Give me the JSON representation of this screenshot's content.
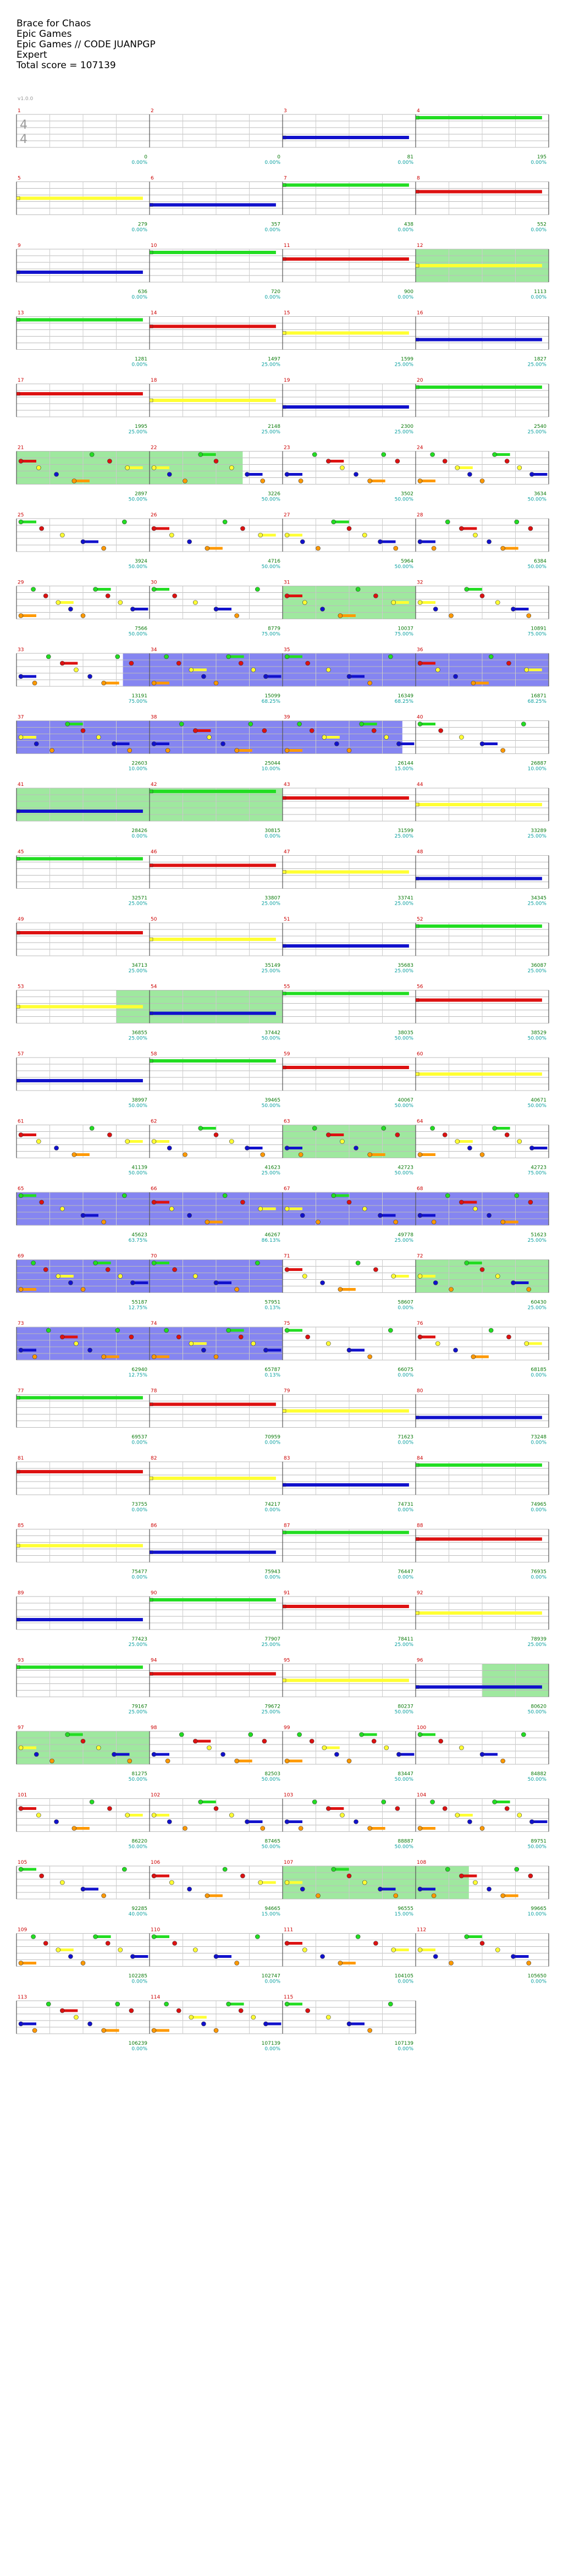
{
  "song": {
    "title": "Brace for Chaos",
    "artist": "Epic Games",
    "charter": "Epic Games // CODE JUANPGP",
    "difficulty": "Expert",
    "total_score_label": "Total score = 107139",
    "version": "v1.0.0"
  },
  "time_signature": "4/4",
  "colors": {
    "green": "#22dd22",
    "red": "#dd1111",
    "yellow": "#ffff33",
    "blue": "#1111cc",
    "orange": "#ff9900",
    "sp_fill": "#7fe07f",
    "solo_fill": "#6666ee",
    "measure_label": "#cc0000",
    "score_text": "#0a7a0a",
    "pct_text": "#0aa0a0"
  },
  "rows": [
    {
      "m": [
        1,
        2,
        3,
        4
      ],
      "stats": [
        [
          "",
          "0",
          "0.00%"
        ],
        [
          "",
          "0",
          "0.00%"
        ],
        [
          "81",
          "81",
          "0.00%"
        ],
        [
          "114",
          "195",
          "0.00%"
        ]
      ]
    },
    {
      "m": [
        5,
        6,
        7,
        8
      ],
      "stats": [
        [
          "84",
          "279",
          "0.00%"
        ],
        [
          "78",
          "357",
          "0.00%"
        ],
        [
          "81",
          "438",
          "0.00%"
        ],
        [
          "114",
          "552",
          "0.00%"
        ]
      ]
    },
    {
      "m": [
        9,
        10,
        11,
        12
      ],
      "stats": [
        [
          "84",
          "636",
          "0.00%"
        ],
        [
          "84",
          "720",
          "0.00%"
        ],
        [
          "180",
          "900",
          "0.00%"
        ],
        [
          "213",
          "1113",
          "0.00%"
        ]
      ]
    },
    {
      "m": [
        13,
        14,
        15,
        16
      ],
      "stats": [
        [
          "168",
          "1281",
          "0.00%"
        ],
        [
          "216",
          "1497",
          "25.00%"
        ],
        [
          "102",
          "1599",
          "25.00%"
        ],
        [
          "228",
          "1827",
          "25.00%"
        ]
      ]
    },
    {
      "m": [
        17,
        18,
        19,
        20
      ],
      "stats": [
        [
          "168",
          "1995",
          "25.00%"
        ],
        [
          "153",
          "2148",
          "25.00%"
        ],
        [
          "152",
          "2300",
          "25.00%"
        ],
        [
          "240",
          "2540",
          "25.00%"
        ]
      ]
    },
    {
      "m": [
        21,
        22,
        23,
        24
      ],
      "stats": [
        [
          "[",
          " ",
          ""
        ],
        [
          "357",
          "2897",
          "50.00%"
        ],
        [
          "329",
          "3226",
          "50.00%"
        ],
        [
          "276",
          "3502",
          "50.00%"
        ]
      ]
    },
    {
      "m": [
        25,
        26,
        27,
        28
      ],
      "stats": [
        [
          "",
          "",
          "0.00%"
        ],
        [
          "",
          "",
          " "
        ],
        [
          "",
          "",
          ""
        ],
        [
          "",
          "",
          ""
        ]
      ]
    },
    {
      "m": [
        29,
        30,
        31,
        32
      ],
      "stats": [
        [
          "",
          "",
          ""
        ],
        [
          "",
          "",
          ""
        ],
        [
          "",
          "",
          ""
        ],
        [
          "",
          "",
          ""
        ]
      ]
    },
    {
      "m": [
        33,
        34,
        35,
        36
      ],
      "stats": [
        [
          "",
          "",
          ""
        ],
        [
          "",
          "",
          ""
        ],
        [
          "",
          "",
          ""
        ],
        [
          "",
          "",
          ""
        ]
      ]
    },
    {
      "m": [
        37,
        38,
        39,
        40
      ],
      "stats": [
        [
          "",
          "",
          ""
        ],
        [
          "",
          "",
          ""
        ],
        [
          "",
          "",
          ""
        ],
        [
          "",
          "",
          ""
        ]
      ]
    }
  ],
  "scores": [
    [
      "0",
      "0.00%"
    ],
    [
      "0",
      "0.00%"
    ],
    [
      "81",
      "0.00%"
    ],
    [
      "195",
      "0.00%"
    ],
    [
      "279",
      "0.00%"
    ],
    [
      "357",
      "0.00%"
    ],
    [
      "438",
      "0.00%"
    ],
    [
      "552",
      "0.00%"
    ],
    [
      "636",
      "0.00%"
    ],
    [
      "720",
      "0.00%"
    ],
    [
      "900",
      "0.00%"
    ],
    [
      "1113",
      "0.00%"
    ],
    [
      "1281",
      "0.00%"
    ],
    [
      "1497",
      "25.00%"
    ],
    [
      "1599",
      "25.00%"
    ],
    [
      "1827",
      "25.00%"
    ],
    [
      "1995",
      "25.00%"
    ],
    [
      "2148",
      "25.00%"
    ],
    [
      "2300",
      "25.00%"
    ],
    [
      "2540",
      "25.00%"
    ],
    [
      "2897",
      "50.00%"
    ],
    [
      "3226",
      "50.00%"
    ],
    [
      "3502",
      "50.00%"
    ],
    [
      "3634",
      "50.00%"
    ],
    [
      "3924",
      "50.00%"
    ],
    [
      "4716",
      "50.00%"
    ],
    [
      "5964",
      "50.00%"
    ],
    [
      "6384",
      "50.00%"
    ],
    [
      "7566",
      "50.00%"
    ],
    [
      "8779",
      "75.00%"
    ],
    [
      "10037",
      "75.00%"
    ],
    [
      "10891",
      "75.00%"
    ],
    [
      "13191",
      "75.00%"
    ],
    [
      "15099",
      "68.25%"
    ],
    [
      "16349",
      "68.25%"
    ],
    [
      "16871",
      "68.25%"
    ],
    [
      "22603",
      "10.00%"
    ],
    [
      "25044",
      "10.00%"
    ],
    [
      "26144",
      "15.00%"
    ],
    [
      "26887",
      "10.00%"
    ],
    [
      "28426",
      "0.00%"
    ],
    [
      "30815",
      "0.00%"
    ],
    [
      "31599",
      "25.00%"
    ],
    [
      "33289",
      "25.00%"
    ],
    [
      "32571",
      "25.00%"
    ],
    [
      "33807",
      "25.00%"
    ],
    [
      "33741",
      "25.00%"
    ],
    [
      "34345",
      "25.00%"
    ],
    [
      "34713",
      "25.00%"
    ],
    [
      "35149",
      "25.00%"
    ],
    [
      "35683",
      "25.00%"
    ],
    [
      "36087",
      "25.00%"
    ],
    [
      "36855",
      "25.00%"
    ],
    [
      "37442",
      "50.00%"
    ],
    [
      "38035",
      "50.00%"
    ],
    [
      "38529",
      "50.00%"
    ],
    [
      "38997",
      "50.00%"
    ],
    [
      "39465",
      "50.00%"
    ],
    [
      "40067",
      "50.00%"
    ],
    [
      "40671",
      "50.00%"
    ],
    [
      "41139",
      "50.00%"
    ],
    [
      "41623",
      "25.00%"
    ],
    [
      "42723",
      "50.00%"
    ],
    [
      "42723",
      "75.00%"
    ],
    [
      "45623",
      "63.75%"
    ],
    [
      "46267",
      "86.13%"
    ],
    [
      "49778",
      "25.00%"
    ],
    [
      "51623",
      "25.00%"
    ],
    [
      "55187",
      "12.75%"
    ],
    [
      "57951",
      "0.13%"
    ],
    [
      "58607",
      "0.00%"
    ],
    [
      "60430",
      "25.00%"
    ],
    [
      "62940",
      "12.75%"
    ],
    [
      "65787",
      "0.13%"
    ],
    [
      "66075",
      "0.00%"
    ],
    [
      "68185",
      "0.00%"
    ],
    [
      "69537",
      "0.00%"
    ],
    [
      "70959",
      "0.00%"
    ],
    [
      "71623",
      "0.00%"
    ],
    [
      "73248",
      "0.00%"
    ],
    [
      "73755",
      "0.00%"
    ],
    [
      "74217",
      "0.00%"
    ],
    [
      "74731",
      "0.00%"
    ],
    [
      "74965",
      "0.00%"
    ],
    [
      "75477",
      "0.00%"
    ],
    [
      "75943",
      "0.00%"
    ],
    [
      "76447",
      "0.00%"
    ],
    [
      "76935",
      "0.00%"
    ],
    [
      "77423",
      "25.00%"
    ],
    [
      "77907",
      "25.00%"
    ],
    [
      "78411",
      "25.00%"
    ],
    [
      "78939",
      "25.00%"
    ],
    [
      "79167",
      "25.00%"
    ],
    [
      "79672",
      "25.00%"
    ],
    [
      "80237",
      "50.00%"
    ],
    [
      "80620",
      "50.00%"
    ],
    [
      "81275",
      "50.00%"
    ],
    [
      "82503",
      "50.00%"
    ],
    [
      "83447",
      "50.00%"
    ],
    [
      "84882",
      "50.00%"
    ],
    [
      "86220",
      "50.00%"
    ],
    [
      "87465",
      "50.00%"
    ],
    [
      "88887",
      "50.00%"
    ],
    [
      "89751",
      "50.00%"
    ],
    [
      "92285",
      "40.00%"
    ],
    [
      "94665",
      "15.00%"
    ],
    [
      "96555",
      "15.00%"
    ],
    [
      "99665",
      "10.00%"
    ],
    [
      "102285",
      "0.00%"
    ],
    [
      "102747",
      "0.00%"
    ],
    [
      "104105",
      "0.00%"
    ],
    [
      "105650",
      "0.00%"
    ],
    [
      "106239",
      "0.00%"
    ],
    [
      "107139",
      "0.00%"
    ],
    [
      "107139",
      "0.00%"
    ]
  ]
}
